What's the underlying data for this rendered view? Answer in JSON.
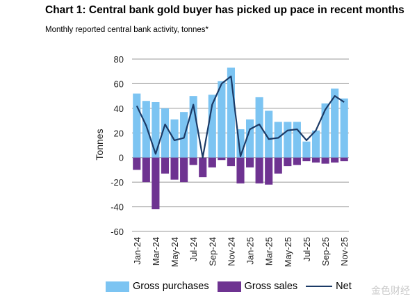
{
  "title": "Chart 1: Central bank gold buyer has picked up pace in recent months",
  "subtitle": "Monthly reported central bank activity, tonnes*",
  "watermark": "金色财经",
  "chart_data": {
    "type": "bar",
    "ylabel": "Tonnes",
    "ylim": [
      -60,
      80
    ],
    "yticks": [
      80,
      60,
      40,
      20,
      0,
      -20,
      -40,
      -60
    ],
    "categories": [
      "Jan-24",
      "Feb-24",
      "Mar-24",
      "Apr-24",
      "May-24",
      "Jun-24",
      "Jul-24",
      "Aug-24",
      "Sep-24",
      "Oct-24",
      "Nov-24",
      "Dec-24",
      "Jan-25",
      "Feb-25",
      "Mar-25",
      "Apr-25",
      "May-25",
      "Jun-25",
      "Jul-25",
      "Aug-25",
      "Sep-25",
      "Oct-25",
      "Nov-25"
    ],
    "xtick_labels": [
      "Jan-24",
      "Mar-24",
      "May-24",
      "Jul-24",
      "Sep-24",
      "Nov-24",
      "Jan-25",
      "Mar-25",
      "May-25",
      "Jul-25",
      "Sep-25",
      "Nov-25"
    ],
    "series": [
      {
        "name": "Gross purchases",
        "kind": "bar",
        "color": "#7cc4f2",
        "values": [
          52,
          46,
          45,
          40,
          31,
          37,
          50,
          0,
          51,
          62,
          73,
          23,
          31,
          49,
          38,
          29,
          29,
          29,
          13,
          22,
          44,
          56,
          48
        ]
      },
      {
        "name": "Gross sales",
        "kind": "bar",
        "color": "#6e3391",
        "values": [
          -10,
          -20,
          -42,
          -13,
          -18,
          -20,
          -6,
          -16,
          -8,
          -2,
          -7,
          -21,
          -8,
          -21,
          -22,
          -13,
          -7,
          -6,
          -3,
          -4,
          -5,
          -4,
          -3
        ]
      },
      {
        "name": "Net",
        "kind": "line",
        "color": "#1b3a66",
        "values": [
          42,
          26,
          3,
          27,
          14,
          16,
          43,
          0,
          43,
          60,
          66,
          1,
          23,
          27,
          15,
          16,
          22,
          23,
          14,
          22,
          39,
          50,
          45
        ]
      }
    ],
    "legend": [
      "Gross purchases",
      "Gross sales",
      "Net"
    ],
    "grid": true
  }
}
